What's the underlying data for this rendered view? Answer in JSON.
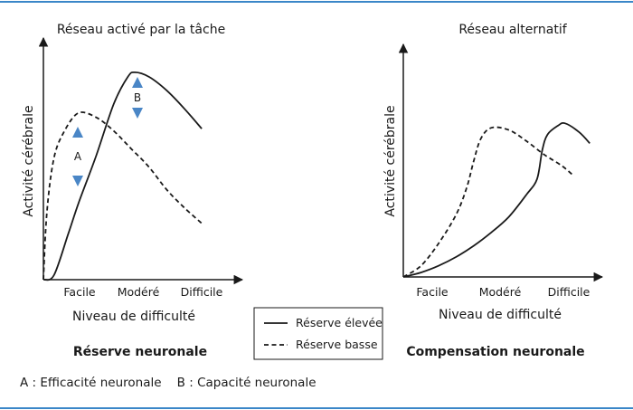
{
  "figure": {
    "legend": {
      "items": [
        {
          "label": "Réserve élevée",
          "style": "solid"
        },
        {
          "label": "Réserve basse",
          "style": "dashed"
        }
      ]
    },
    "footnote": "A : Efficacité neuronale    B : Capacité neuronale",
    "colors": {
      "frame": "#3a86c8",
      "arrows": "#4a86c6",
      "line": "#1a1a1a"
    }
  },
  "chart_data": [
    {
      "type": "line",
      "title": "Réseau activé par la tâche",
      "caption": "Réserve neuronale",
      "xlabel": "Niveau de difficulté",
      "ylabel": "Activité cérébrale",
      "categories": [
        "Facile",
        "Modéré",
        "Difficile"
      ],
      "xlim": [
        0,
        5.5
      ],
      "ylim": [
        0,
        1
      ],
      "series": [
        {
          "name": "Réserve élevée",
          "style": "solid",
          "points": [
            [
              0,
              0
            ],
            [
              0.3,
              0.02
            ],
            [
              0.7,
              0.2
            ],
            [
              1,
              0.34
            ],
            [
              1.5,
              0.55
            ],
            [
              2,
              0.78
            ],
            [
              2.4,
              0.9
            ],
            [
              2.6,
              0.92
            ],
            [
              3,
              0.9
            ],
            [
              3.5,
              0.84
            ],
            [
              4,
              0.76
            ],
            [
              4.5,
              0.67
            ]
          ]
        },
        {
          "name": "Réserve basse",
          "style": "dashed",
          "points": [
            [
              0,
              0
            ],
            [
              0.1,
              0.3
            ],
            [
              0.3,
              0.54
            ],
            [
              0.6,
              0.66
            ],
            [
              1,
              0.74
            ],
            [
              1.5,
              0.72
            ],
            [
              2,
              0.66
            ],
            [
              2.5,
              0.58
            ],
            [
              3,
              0.5
            ],
            [
              3.5,
              0.4
            ],
            [
              4,
              0.32
            ],
            [
              4.5,
              0.25
            ]
          ]
        }
      ],
      "annotations": [
        {
          "label": "A",
          "x": 1,
          "y_from": 0.47,
          "y_to": 0.62
        },
        {
          "label": "B",
          "x": 2.6,
          "y_from": 0.74,
          "y_to": 0.88
        }
      ]
    },
    {
      "type": "line",
      "title": "Réseau alternatif",
      "caption": "Compensation neuronale",
      "xlabel": "Niveau de difficulté",
      "ylabel": "Activité cérébrale",
      "categories": [
        "Facile",
        "Modéré",
        "Difficile"
      ],
      "xlim": [
        0,
        5.5
      ],
      "ylim": [
        0,
        1
      ],
      "series": [
        {
          "name": "Réserve élevée",
          "style": "solid",
          "points": [
            [
              0,
              0
            ],
            [
              0.5,
              0.02
            ],
            [
              1,
              0.05
            ],
            [
              1.5,
              0.09
            ],
            [
              2,
              0.14
            ],
            [
              2.5,
              0.2
            ],
            [
              3,
              0.27
            ],
            [
              3.5,
              0.37
            ],
            [
              3.8,
              0.44
            ],
            [
              3.95,
              0.57
            ],
            [
              4.1,
              0.64
            ],
            [
              4.4,
              0.68
            ],
            [
              4.6,
              0.69
            ],
            [
              5,
              0.65
            ],
            [
              5.3,
              0.6
            ]
          ]
        },
        {
          "name": "Réserve basse",
          "style": "dashed",
          "points": [
            [
              0,
              0
            ],
            [
              0.5,
              0.05
            ],
            [
              1,
              0.15
            ],
            [
              1.5,
              0.28
            ],
            [
              1.8,
              0.4
            ],
            [
              2,
              0.52
            ],
            [
              2.2,
              0.62
            ],
            [
              2.5,
              0.67
            ],
            [
              3,
              0.66
            ],
            [
              3.5,
              0.61
            ],
            [
              4,
              0.55
            ],
            [
              4.5,
              0.5
            ],
            [
              4.8,
              0.46
            ]
          ]
        }
      ]
    }
  ]
}
